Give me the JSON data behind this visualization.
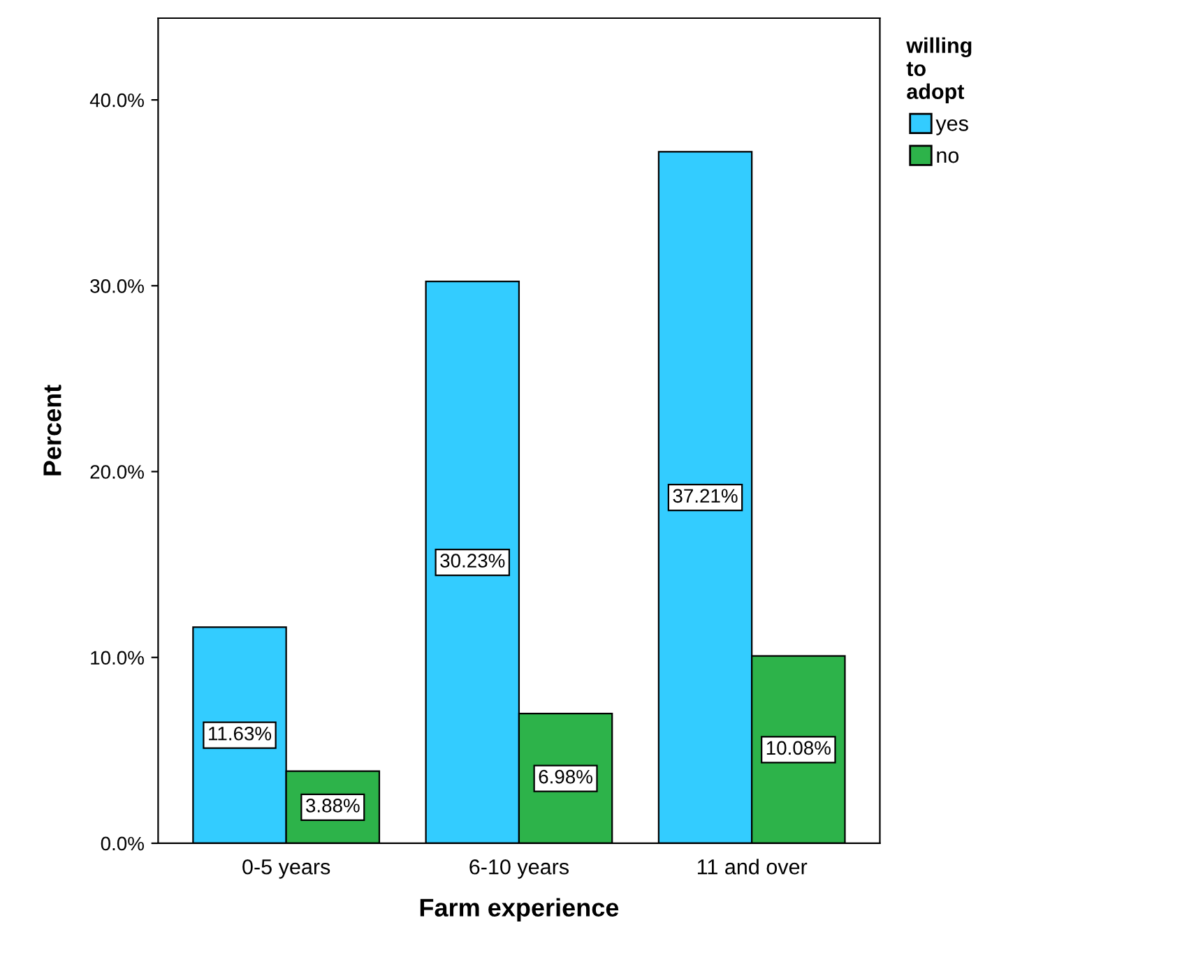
{
  "chart_data": {
    "type": "bar",
    "xlabel": "Farm experience",
    "ylabel": "Percent",
    "legend_title": "willing\nto\nadopt",
    "legend": "top right",
    "grid": false,
    "categories": [
      "0-5 years",
      "6-10 years",
      "11 and over"
    ],
    "series": [
      {
        "name": "yes",
        "color": "#33ccff",
        "values": [
          11.63,
          30.23,
          37.21
        ],
        "value_labels": [
          "11.63%",
          "30.23%",
          "37.21%"
        ]
      },
      {
        "name": "no",
        "color": "#2db34a",
        "values": [
          3.88,
          6.98,
          10.08
        ],
        "value_labels": [
          "3.88%",
          "6.98%",
          "10.08%"
        ]
      }
    ],
    "ylim": [
      0,
      44.4
    ],
    "yticks": [
      {
        "value": 0,
        "label": "0.0%"
      },
      {
        "value": 10,
        "label": "10.0%"
      },
      {
        "value": 20,
        "label": "20.0%"
      },
      {
        "value": 30,
        "label": "30.0%"
      },
      {
        "value": 40,
        "label": "40.0%"
      }
    ]
  }
}
